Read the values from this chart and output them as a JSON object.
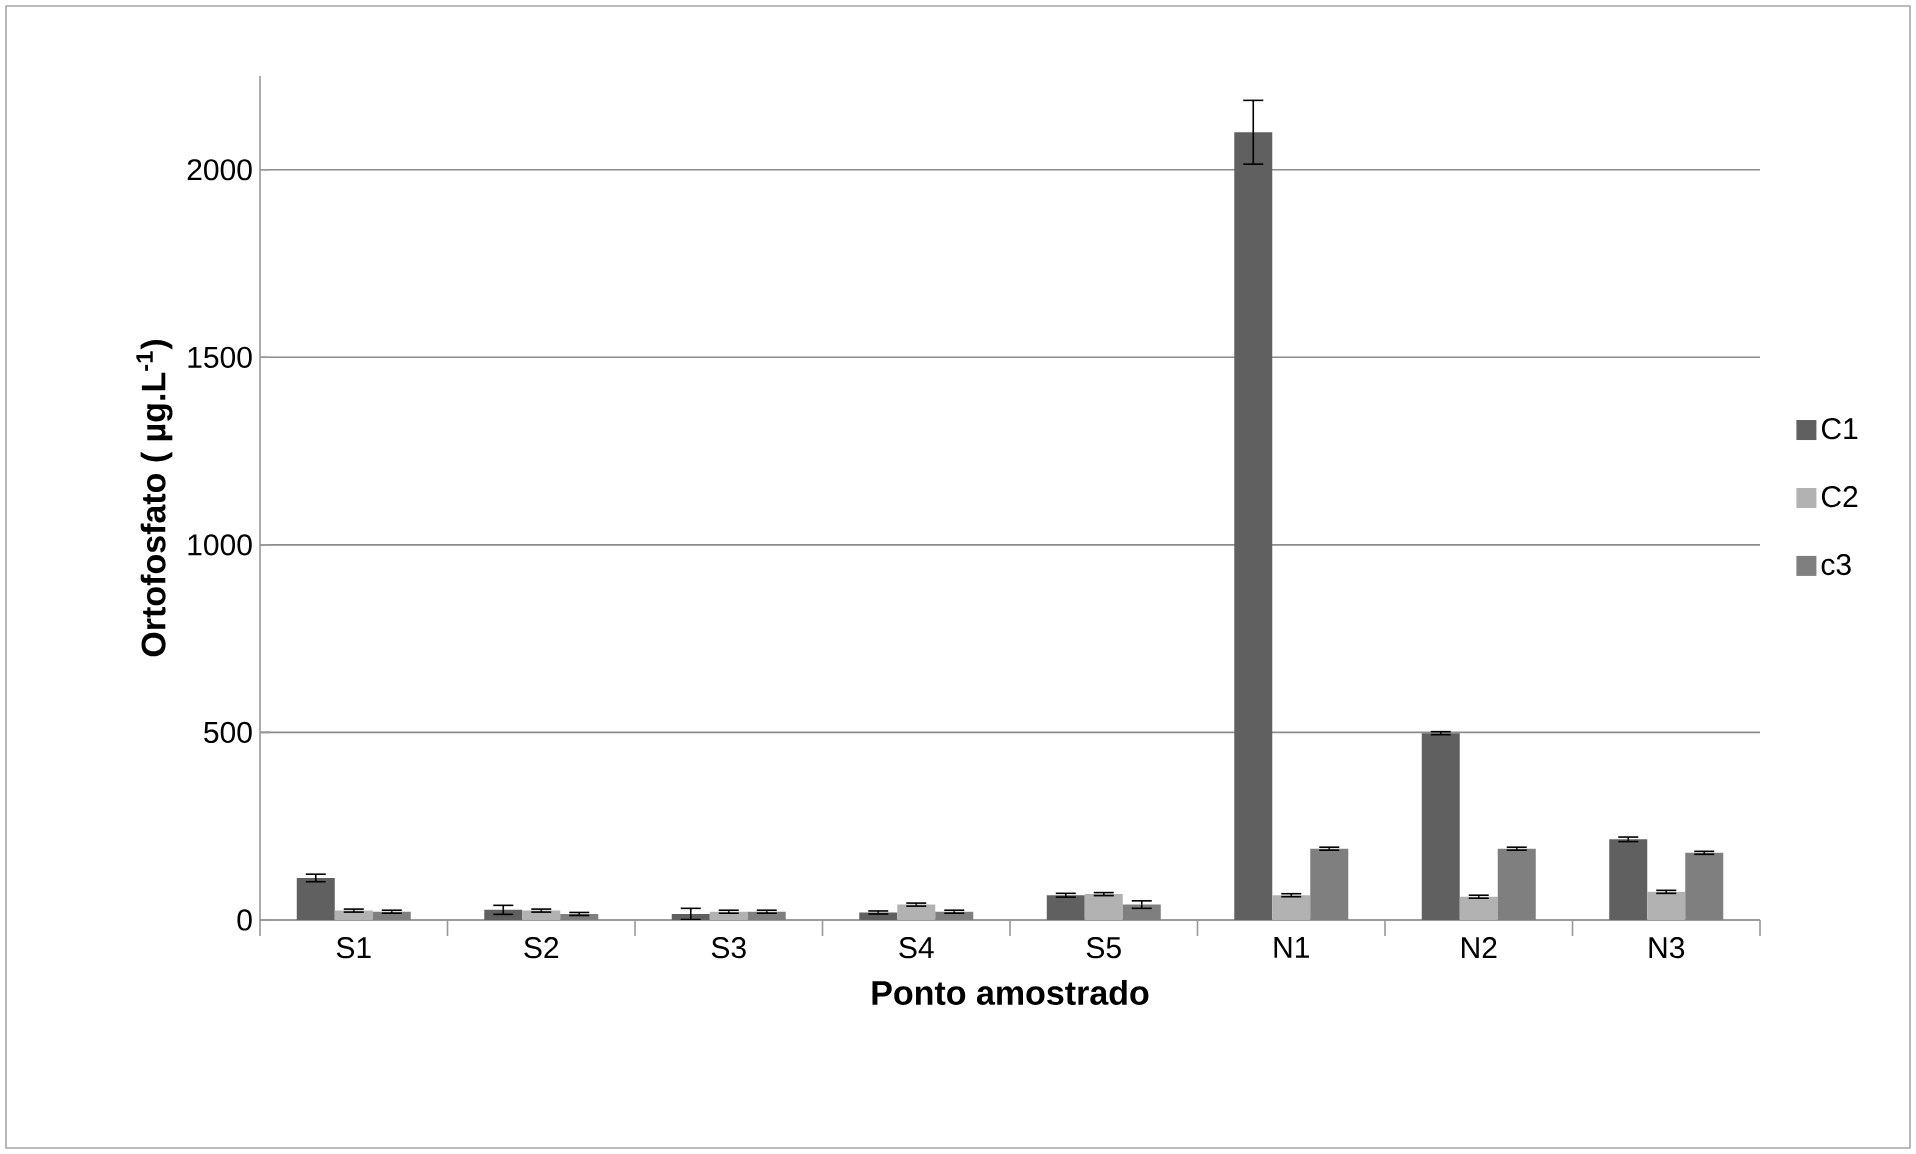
{
  "chart_data": {
    "type": "bar",
    "xlabel": "Ponto amostrado",
    "ylabel": "Ortofosfato ( µg.L$^{-1}$)",
    "categories": [
      "S1",
      "S2",
      "S3",
      "S4",
      "S5",
      "N1",
      "N2",
      "N3"
    ],
    "series": [
      {
        "name": "C1",
        "color": "#606060",
        "values": [
          112,
          27,
          16,
          20,
          66,
          2100,
          498,
          215
        ],
        "errors": [
          10,
          12,
          15,
          4,
          5,
          85,
          4,
          6
        ]
      },
      {
        "name": "C2",
        "color": "#b2b2b2",
        "values": [
          25,
          25,
          22,
          41,
          69,
          66,
          62,
          75
        ],
        "errors": [
          4,
          4,
          4,
          4,
          4,
          4,
          4,
          4
        ]
      },
      {
        "name": "c3",
        "color": "#7f7f7f",
        "values": [
          22,
          16,
          22,
          22,
          41,
          190,
          190,
          179
        ],
        "errors": [
          4,
          4,
          4,
          4,
          10,
          4,
          4,
          4
        ]
      }
    ],
    "ylim": [
      0,
      2250
    ],
    "yticks": [
      0,
      500,
      1000,
      1500,
      2000
    ],
    "grid": "y",
    "legend": "right"
  }
}
